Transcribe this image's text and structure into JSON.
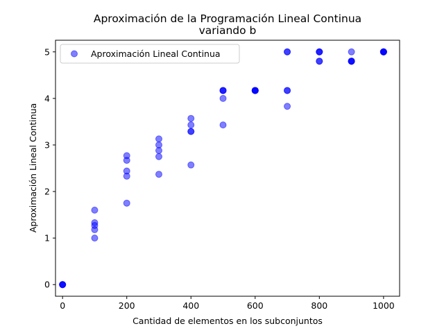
{
  "chart_data": {
    "type": "scatter",
    "title": "Aproximación de la Programación Lineal Continua",
    "subtitle": "variando b",
    "xlabel": "Cantidad de elementos en los subconjuntos",
    "ylabel": "Aproximación Lineal Continua",
    "xlim": [
      -22,
      1050
    ],
    "ylim": [
      -0.25,
      5.25
    ],
    "xticks": [
      0,
      200,
      400,
      600,
      800,
      1000
    ],
    "yticks": [
      0,
      1,
      2,
      3,
      4,
      5
    ],
    "grid": false,
    "legend_position": "top-left",
    "series": [
      {
        "name": "Aproximación Lineal Continua",
        "color": "#0000ff",
        "alpha": 0.5,
        "points": [
          [
            0,
            0
          ],
          [
            0,
            0
          ],
          [
            0,
            0
          ],
          [
            0,
            0
          ],
          [
            100,
            1.6
          ],
          [
            100,
            1.33
          ],
          [
            100,
            1.27
          ],
          [
            100,
            1.18
          ],
          [
            100,
            1.0
          ],
          [
            200,
            2.77
          ],
          [
            200,
            2.67
          ],
          [
            200,
            2.44
          ],
          [
            200,
            2.33
          ],
          [
            200,
            1.75
          ],
          [
            300,
            3.13
          ],
          [
            300,
            3.0
          ],
          [
            300,
            2.88
          ],
          [
            300,
            2.75
          ],
          [
            300,
            2.37
          ],
          [
            400,
            3.57
          ],
          [
            400,
            3.43
          ],
          [
            400,
            3.29
          ],
          [
            400,
            3.29
          ],
          [
            400,
            2.57
          ],
          [
            500,
            4.17
          ],
          [
            500,
            4.17
          ],
          [
            500,
            4.17
          ],
          [
            500,
            4.0
          ],
          [
            500,
            3.43
          ],
          [
            600,
            4.17
          ],
          [
            600,
            4.17
          ],
          [
            600,
            4.17
          ],
          [
            600,
            4.17
          ],
          [
            600,
            4.17
          ],
          [
            700,
            5.0
          ],
          [
            700,
            5.0
          ],
          [
            700,
            4.17
          ],
          [
            700,
            4.17
          ],
          [
            700,
            3.83
          ],
          [
            800,
            5.0
          ],
          [
            800,
            5.0
          ],
          [
            800,
            5.0
          ],
          [
            800,
            4.8
          ],
          [
            800,
            4.8
          ],
          [
            900,
            5.0
          ],
          [
            900,
            4.8
          ],
          [
            900,
            4.8
          ],
          [
            900,
            4.8
          ],
          [
            900,
            4.8
          ],
          [
            1000,
            5.0
          ],
          [
            1000,
            5.0
          ],
          [
            1000,
            5.0
          ],
          [
            1000,
            5.0
          ],
          [
            1000,
            5.0
          ]
        ]
      }
    ]
  }
}
